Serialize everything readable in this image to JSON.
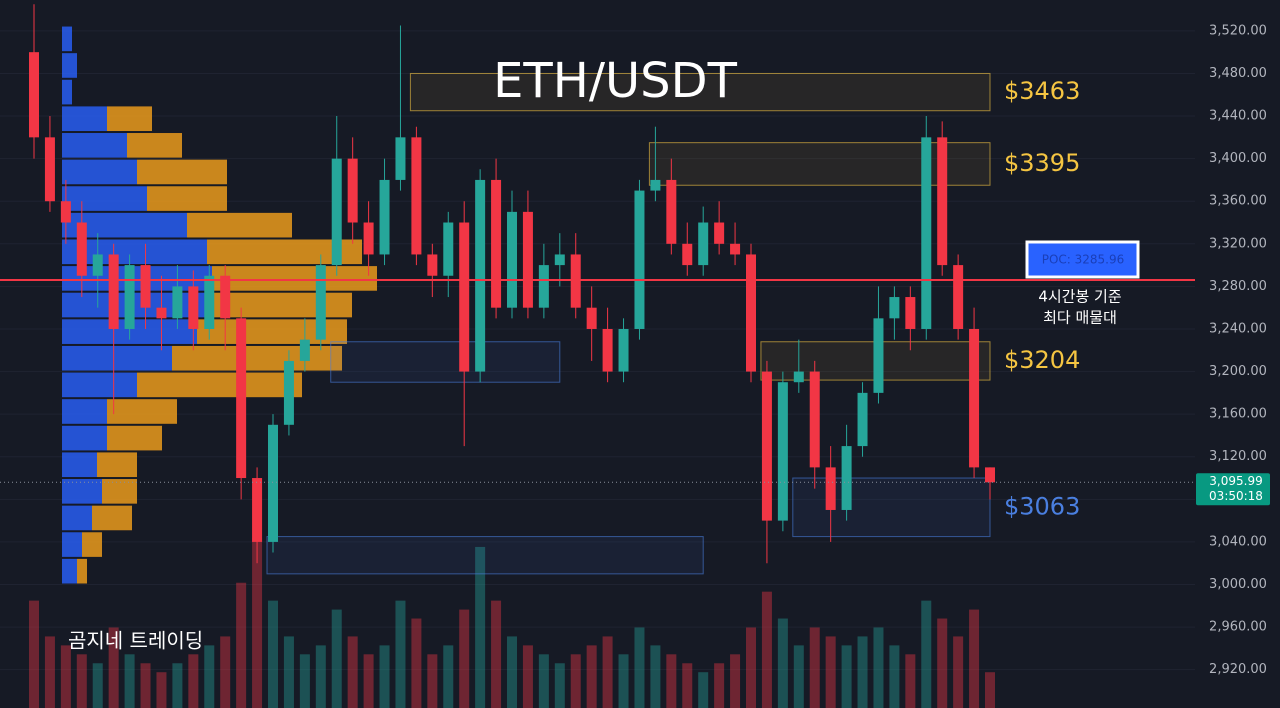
{
  "chart_data": {
    "type": "candlestick",
    "title": "ETH/USDT",
    "watermark": "곰지네 트레이딩",
    "open": [
      3500,
      3420,
      3360,
      3340,
      3290,
      3310,
      3240,
      3300,
      3260,
      3250,
      3280,
      3240,
      3290,
      3250,
      3100,
      3040,
      3150,
      3210,
      3230,
      3300,
      3400,
      3340,
      3310,
      3380,
      3420,
      3310,
      3290,
      3340,
      3200,
      3380,
      3260,
      3350,
      3260,
      3300,
      3310,
      3260,
      3240,
      3200,
      3240,
      3370,
      3380,
      3320,
      3300,
      3340,
      3320,
      3310,
      3200,
      3060,
      3190,
      3200,
      3110,
      3070,
      3130,
      3180,
      3250,
      3270,
      3240,
      3420,
      3300,
      3240,
      3110
    ],
    "high": [
      3545,
      3440,
      3380,
      3360,
      3330,
      3320,
      3310,
      3320,
      3290,
      3300,
      3295,
      3300,
      3300,
      3260,
      3110,
      3160,
      3220,
      3250,
      3310,
      3440,
      3420,
      3360,
      3400,
      3525,
      3430,
      3320,
      3350,
      3360,
      3390,
      3400,
      3370,
      3370,
      3320,
      3330,
      3330,
      3280,
      3260,
      3250,
      3380,
      3430,
      3400,
      3340,
      3355,
      3360,
      3340,
      3320,
      3210,
      3200,
      3230,
      3210,
      3130,
      3150,
      3190,
      3280,
      3280,
      3280,
      3440,
      3435,
      3310,
      3260,
      3110
    ],
    "low": [
      3400,
      3350,
      3320,
      3270,
      3260,
      3160,
      3230,
      3240,
      3220,
      3240,
      3220,
      3230,
      3220,
      3080,
      3020,
      3030,
      3140,
      3200,
      3220,
      3290,
      3320,
      3290,
      3300,
      3370,
      3300,
      3270,
      3270,
      3130,
      3190,
      3250,
      3250,
      3250,
      3250,
      3280,
      3250,
      3210,
      3190,
      3190,
      3230,
      3360,
      3310,
      3290,
      3290,
      3310,
      3300,
      3190,
      3020,
      3050,
      3180,
      3090,
      3040,
      3060,
      3120,
      3170,
      3230,
      3220,
      3230,
      3290,
      3230,
      3100,
      3080
    ],
    "close": [
      3420,
      3360,
      3340,
      3290,
      3310,
      3240,
      3300,
      3260,
      3250,
      3280,
      3240,
      3290,
      3250,
      3100,
      3040,
      3150,
      3210,
      3230,
      3300,
      3400,
      3340,
      3310,
      3380,
      3420,
      3310,
      3290,
      3340,
      3200,
      3380,
      3260,
      3350,
      3260,
      3300,
      3310,
      3260,
      3240,
      3200,
      3240,
      3370,
      3380,
      3320,
      3300,
      3340,
      3320,
      3310,
      3200,
      3060,
      3190,
      3200,
      3110,
      3070,
      3130,
      3180,
      3250,
      3270,
      3240,
      3420,
      3300,
      3240,
      3110,
      3095.99
    ],
    "volume": [
      60,
      40,
      35,
      30,
      25,
      45,
      30,
      25,
      20,
      25,
      30,
      35,
      40,
      70,
      95,
      60,
      40,
      30,
      35,
      55,
      40,
      30,
      35,
      60,
      50,
      30,
      35,
      55,
      90,
      60,
      40,
      35,
      30,
      25,
      30,
      35,
      40,
      30,
      45,
      35,
      30,
      25,
      20,
      25,
      30,
      45,
      65,
      50,
      35,
      45,
      40,
      35,
      40,
      45,
      35,
      30,
      60,
      50,
      40,
      55,
      20
    ],
    "up_color": "#26a69a",
    "down_color": "#f23645",
    "ylim": [
      2884,
      3549
    ],
    "yticks": [
      {
        "value": 2920,
        "label": "2,920.00"
      },
      {
        "value": 2960,
        "label": "2,960.00"
      },
      {
        "value": 3000,
        "label": "3,000.00"
      },
      {
        "value": 3040,
        "label": "3,040.00"
      },
      {
        "value": 3080,
        "label": "3,080.00"
      },
      {
        "value": 3120,
        "label": "3,120.00"
      },
      {
        "value": 3160,
        "label": "3,160.00"
      },
      {
        "value": 3200,
        "label": "3,200.00"
      },
      {
        "value": 3240,
        "label": "3,240.00"
      },
      {
        "value": 3280,
        "label": "3,280.00"
      },
      {
        "value": 3320,
        "label": "3,320.00"
      },
      {
        "value": 3360,
        "label": "3,360.00"
      },
      {
        "value": 3400,
        "label": "3,400.00"
      },
      {
        "value": 3440,
        "label": "3,440.00"
      },
      {
        "value": 3480,
        "label": "3,480.00"
      },
      {
        "value": 3520,
        "label": "3,520.00"
      }
    ],
    "grid": true,
    "volume_profile": {
      "bins": [
        3000,
        3025,
        3050,
        3075,
        3100,
        3125,
        3150,
        3175,
        3200,
        3225,
        3250,
        3275,
        3300,
        3325,
        3350,
        3375,
        3400,
        3425,
        3450,
        3475,
        3500,
        3525
      ],
      "buy": [
        15,
        20,
        30,
        40,
        35,
        45,
        45,
        75,
        110,
        135,
        145,
        150,
        145,
        125,
        85,
        75,
        65,
        45,
        10,
        15,
        10
      ],
      "sell": [
        10,
        20,
        40,
        35,
        40,
        55,
        70,
        165,
        170,
        150,
        145,
        165,
        155,
        105,
        80,
        90,
        55,
        45,
        0,
        0,
        0
      ],
      "buy_color": "#2962ff",
      "sell_color": "#f7a21b"
    },
    "zones": [
      {
        "label": "$3463",
        "low": 3445,
        "high": 3480,
        "from": 24,
        "to": 60,
        "color": "#f5c542"
      },
      {
        "label": "$3395",
        "low": 3375,
        "high": 3415,
        "from": 39,
        "to": 60,
        "color": "#f5c542"
      },
      {
        "label": "$3204",
        "low": 3192,
        "high": 3228,
        "from": 46,
        "to": 60,
        "color": "#f5c542"
      },
      {
        "label": "$3063",
        "low": 3045,
        "high": 3100,
        "from": 48,
        "to": 60,
        "color": "#4a7fe0"
      },
      {
        "low": 3010,
        "high": 3045,
        "from": 15,
        "to": 42,
        "color": "#4a7fe0"
      },
      {
        "low": 3190,
        "high": 3228,
        "from": 19,
        "to": 33,
        "color": "#4a7fe0"
      }
    ],
    "poc": {
      "value": 3285.96,
      "label": "POC: 3285.96",
      "color": "#f23645"
    },
    "annotation": [
      "4시간봉 기준",
      "최다 매물대"
    ],
    "last_price": 3095.99,
    "last_price_label": "3,095.99",
    "countdown": "03:50:18"
  }
}
